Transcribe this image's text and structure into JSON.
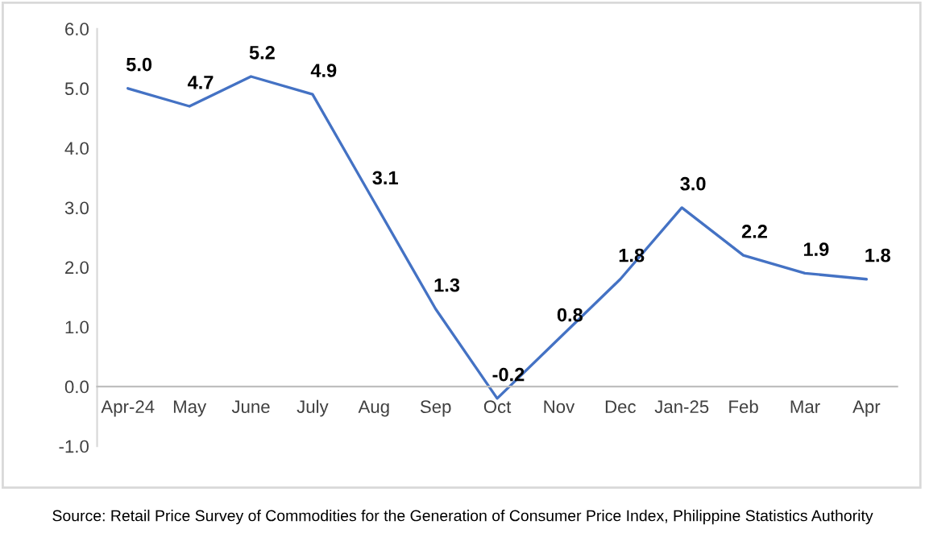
{
  "chart_data": {
    "type": "line",
    "categories": [
      "Apr-24",
      "May",
      "June",
      "July",
      "Aug",
      "Sep",
      "Oct",
      "Nov",
      "Dec",
      "Jan-25",
      "Feb",
      "Mar",
      "Apr"
    ],
    "series": [
      {
        "color": "#4472c4",
        "values": [
          5.0,
          4.7,
          5.2,
          4.9,
          3.1,
          1.3,
          -0.2,
          0.8,
          1.8,
          3.0,
          2.2,
          1.9,
          1.8
        ]
      }
    ],
    "ylim": [
      -1.0,
      6.0
    ],
    "yticks": [
      {
        "value": -1.0,
        "label": "-1.0"
      },
      {
        "value": 0.0,
        "label": "0.0"
      },
      {
        "value": 1.0,
        "label": "1.0"
      },
      {
        "value": 2.0,
        "label": "2.0"
      },
      {
        "value": 3.0,
        "label": "3.0"
      },
      {
        "value": 4.0,
        "label": "4.0"
      },
      {
        "value": 5.0,
        "label": "5.0"
      },
      {
        "value": 6.0,
        "label": "6.0"
      }
    ],
    "value_labels": [
      "5.0",
      "4.7",
      "5.2",
      "4.9",
      "3.1",
      "1.3",
      "-0.2",
      "0.8",
      "1.8",
      "3.0",
      "2.2",
      "1.9",
      "1.8"
    ],
    "grid": false,
    "legend": false,
    "marker": "none",
    "line_style": "solid",
    "annotations": [
      "Source: Retail Price Survey of Commodities for the Generation of Consumer Price Index, Philippine Statistics Authority"
    ]
  }
}
